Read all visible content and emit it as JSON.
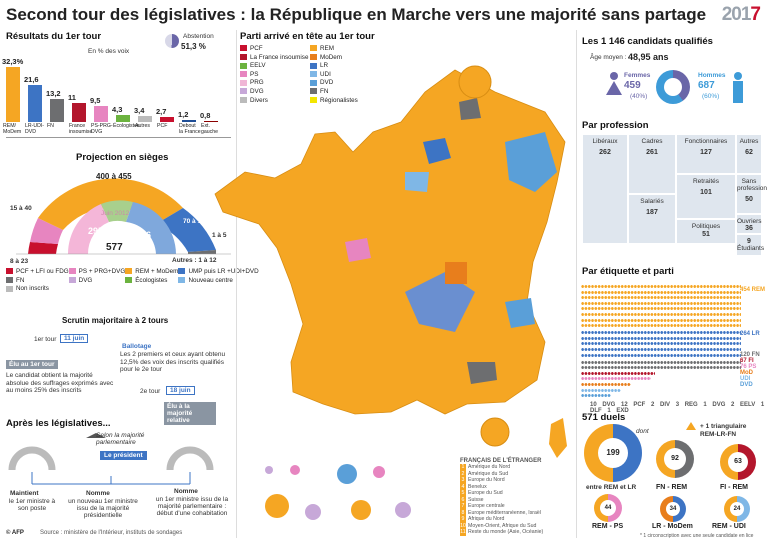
{
  "title": "Second tour des législatives : la République en Marche vers une majorité sans partage",
  "logo": {
    "a": "201",
    "b": "7"
  },
  "results": {
    "heading": "Résultats du 1er tour",
    "unit": "En % des voix",
    "abstention_label": "Abstention",
    "abstention_value": "51,3 %"
  },
  "map": {
    "heading": "Parti arrivé en tête au 1er tour"
  },
  "map_legend": [
    {
      "label": "PCF",
      "color": "#c8102e"
    },
    {
      "label": "REM",
      "color": "#f5a623"
    },
    {
      "label": "La France insoumise",
      "color": "#b3162c"
    },
    {
      "label": "MoDem",
      "color": "#e87e1c"
    },
    {
      "label": "EELV",
      "color": "#6cb33f"
    },
    {
      "label": "LR",
      "color": "#3d74c4"
    },
    {
      "label": "PS",
      "color": "#e785c0"
    },
    {
      "label": "UDI",
      "color": "#7fb7e6"
    },
    {
      "label": "PRG",
      "color": "#f0b6d6"
    },
    {
      "label": "DVD",
      "color": "#5a9fd8"
    },
    {
      "label": "DVG",
      "color": "#c7a8d8"
    },
    {
      "label": "FN",
      "color": "#6d6e70"
    },
    {
      "label": "Divers",
      "color": "#bbbbbb"
    },
    {
      "label": "Régionalistes",
      "color": "#f3e600"
    }
  ],
  "chart_data": [
    {
      "type": "bar",
      "title": "Résultats du 1er tour",
      "ylabel": "En % des voix",
      "categories": [
        "REM/ MoDem",
        "LR-UDI-DVD",
        "FN",
        "France insoumise",
        "PS-PRG-DVG",
        "Écologistes",
        "Autres",
        "PCF",
        "Debout la France",
        "Ext. gauche"
      ],
      "values": [
        32.3,
        21.6,
        13.2,
        11,
        9.5,
        4.3,
        3.4,
        2.7,
        1.2,
        0.8
      ],
      "value_labels": [
        "32,3%",
        "21,6",
        "13,2",
        "11",
        "9,5",
        "4,3",
        "3,4",
        "2,7",
        "1,2",
        "0,8"
      ],
      "colors": [
        "#f5a623",
        "#3d74c4",
        "#6d6e70",
        "#b3162c",
        "#e785c0",
        "#6cb33f",
        "#bbbbbb",
        "#c8102e",
        "#1f4e96",
        "#8b0000"
      ]
    },
    {
      "type": "pie",
      "title": "Projection en sièges",
      "total": "577",
      "segments": [
        {
          "label": "8 à 23",
          "color": "#c8102e"
        },
        {
          "label": "15 à 40",
          "color": "#e785c0"
        },
        {
          "label": "400 à 455",
          "color": "#f5a623"
        },
        {
          "label": "70 à 132",
          "color": "#3d74c4"
        },
        {
          "label": "1 à 5",
          "color": "#6d6e70"
        }
      ],
      "inner_label": "Juin 2012",
      "inner_values": [
        "295",
        "196",
        "15",
        "18",
        "9",
        "15",
        "29"
      ]
    }
  ],
  "seat_legend": [
    {
      "label": "PCF + LFI ou FDG",
      "color": "#c8102e"
    },
    {
      "label": "PS + PRG+DVG",
      "color": "#e785c0"
    },
    {
      "label": "REM + MoDem",
      "color": "#f5a623"
    },
    {
      "label": "UMP puis LR +UDI+DVD",
      "color": "#3d74c4"
    },
    {
      "label": "FN",
      "color": "#6d6e70"
    },
    {
      "label": "DVG",
      "color": "#c7a8d8"
    },
    {
      "label": "Écologistes",
      "color": "#6cb33f"
    },
    {
      "label": "Nouveau centre",
      "color": "#7fb7e6"
    },
    {
      "label": "Non inscrits",
      "color": "#bbbbbb"
    }
  ],
  "other_label": "Autres : 1 à 12",
  "scrutin": {
    "heading": "Scrutin majoritaire à 2 tours",
    "tour1": "1er tour",
    "date1": "11 juin",
    "elu": "Élu au 1er tour",
    "elu_text": "Le candidat obtient la majorité absolue des suffrages exprimés avec au moins 25% des inscrits",
    "ballotage": "Ballotage",
    "ballotage_text": "Les 2 premiers et ceux ayant obtenu 12,5% des voix des inscrits qualifiés pour le 2e tour",
    "tour2": "2e tour",
    "date2": "18 juin",
    "elu2": "Élu à la majorité relative"
  },
  "apres": {
    "heading": "Après les législatives...",
    "selon": "Selon la majorité parlementaire",
    "president": "Le président",
    "o1_title": "Maintient",
    "o1_text": "le 1er ministre à son poste",
    "o2_title": "Nomme",
    "o2_text": "un nouveau 1er ministre issu de la majorité présidentielle",
    "o3_title": "Nomme",
    "o3_text": "un 1er ministre issu de la majorité parlementaire : début d'une cohabitation"
  },
  "source": "Source : ministère de l'Intérieur, instituts de sondages",
  "afp": "© AFP",
  "candidates": {
    "heading": "Les 1 146 candidats qualifiés",
    "age_label": "Âge moyen :",
    "age": "48,95 ans",
    "f_label": "Femmes",
    "f_value": "459",
    "f_pct": "(40%)",
    "h_label": "Hommes",
    "h_value": "687",
    "h_pct": "(60%)"
  },
  "profession": {
    "heading": "Par profession",
    "items": [
      {
        "label": "Libéraux",
        "value": "262"
      },
      {
        "label": "Cadres",
        "value": "261"
      },
      {
        "label": "Fonctionnaires",
        "value": "127"
      },
      {
        "label": "Autres",
        "value": "62"
      },
      {
        "label": "Sans profession",
        "value": "50"
      },
      {
        "label": "Salariés",
        "value": "187"
      },
      {
        "label": "Retraités",
        "value": "101"
      },
      {
        "label": "Ouvriers",
        "value": "36"
      },
      {
        "label": "Politiques",
        "value": "51"
      },
      {
        "label": "Étudiants",
        "value": "9"
      }
    ]
  },
  "etiquette": {
    "heading": "Par étiquette et parti",
    "rows": [
      {
        "label": "454 REM",
        "color": "#f5a623"
      },
      {
        "label": "264 LR",
        "color": "#3d74c4"
      },
      {
        "label": "120 FN",
        "color": "#6d6e70"
      },
      {
        "label": "67 FI",
        "color": "#b3162c"
      },
      {
        "label": "76 PS",
        "color": "#e785c0"
      },
      {
        "label": "MoD",
        "color": "#e87e1c"
      },
      {
        "label": "UDI",
        "color": "#7fb7e6"
      },
      {
        "label": "DVD",
        "color": "#5a9fd8"
      }
    ],
    "small": [
      "10",
      "DVG",
      "12",
      "PCF",
      "2",
      "DIV",
      "3",
      "REG",
      "1",
      "DVG",
      "2",
      "EELV",
      "1",
      "DLF",
      "1",
      "EXD"
    ]
  },
  "duels": {
    "heading": "571 duels",
    "dont": "dont",
    "triangle": "+ 1 triangulaire",
    "triangle_text": "REM-LR-FN",
    "items": [
      {
        "value": "199",
        "label": "entre REM et LR"
      },
      {
        "value": "92",
        "label": "FN - REM"
      },
      {
        "value": "63",
        "label": "FI - REM"
      },
      {
        "value": "44",
        "label": "REM - PS"
      },
      {
        "value": "34",
        "label": "LR - MoDem"
      },
      {
        "value": "24",
        "label": "REM - UDI"
      }
    ],
    "footnote": "* 1 circonscription avec une seule candidate en lice"
  },
  "overseas": {
    "heading": "FRANÇAIS DE L'ÉTRANGER",
    "items": [
      "Amérique du Nord",
      "Amérique du Sud",
      "Europe du Nord",
      "Benelux",
      "Europe du Sud",
      "Suisse",
      "Europe centrale",
      "Europe méditerranéenne, Israël",
      "Afrique du Nord",
      "Moyen-Orient, Afrique du Sud",
      "Reste du monde (Asie, Océanie)"
    ]
  }
}
